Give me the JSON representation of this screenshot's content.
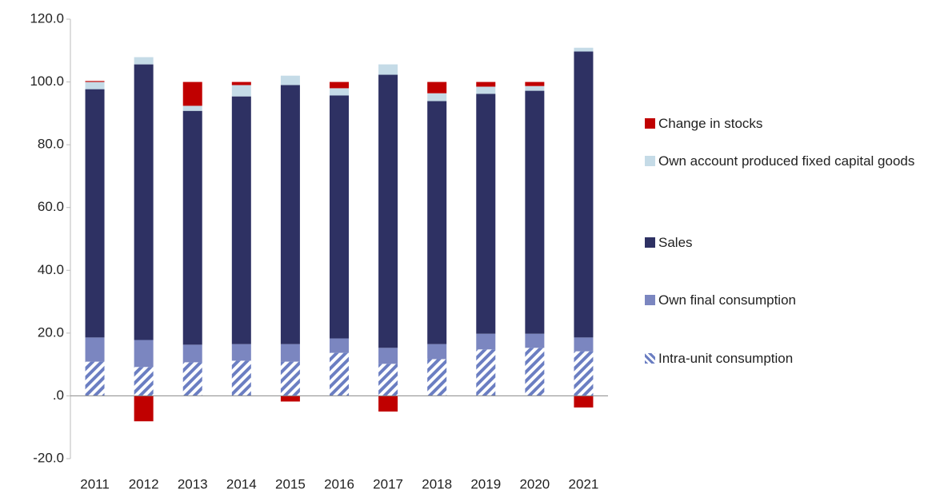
{
  "chart_data": {
    "type": "stacked_bar",
    "categories": [
      "2011",
      "2012",
      "2013",
      "2014",
      "2015",
      "2016",
      "2017",
      "2018",
      "2019",
      "2020",
      "2021"
    ],
    "series": [
      {
        "name": "Intra-unit consumption",
        "color": "#6b7ec2",
        "hatch": true,
        "values": [
          10.9,
          9.2,
          10.7,
          11.2,
          10.9,
          13.7,
          10.2,
          11.7,
          14.8,
          15.3,
          14.2
        ]
      },
      {
        "name": "Own final consumption",
        "color": "#7b86c0",
        "values": [
          7.7,
          8.6,
          5.6,
          5.3,
          5.6,
          4.6,
          5.1,
          4.8,
          5.0,
          4.5,
          4.4
        ]
      },
      {
        "name": "Sales",
        "color": "#2e3163",
        "values": [
          79.1,
          87.8,
          74.5,
          78.9,
          82.5,
          77.4,
          87.0,
          77.4,
          76.4,
          77.4,
          91.1
        ]
      },
      {
        "name": "Own account produced fixed capital goods",
        "color": "#c5dbe7",
        "values": [
          2.3,
          2.3,
          1.6,
          3.6,
          3.0,
          2.3,
          3.3,
          2.5,
          2.3,
          1.5,
          1.2
        ]
      },
      {
        "name": "Change in stocks",
        "color": "#c00000",
        "values": [
          0.3,
          -8.1,
          7.6,
          1.0,
          -1.8,
          2.0,
          -5.0,
          3.6,
          1.5,
          1.3,
          -3.7
        ]
      }
    ],
    "ylim": [
      -20,
      120
    ],
    "yticks": [
      {
        "value": -20,
        "label": "-20.0"
      },
      {
        "value": 0,
        "label": ".0"
      },
      {
        "value": 20,
        "label": "20.0"
      },
      {
        "value": 40,
        "label": "40.0"
      },
      {
        "value": 60,
        "label": "60.0"
      },
      {
        "value": 80,
        "label": "80.0"
      },
      {
        "value": 100,
        "label": "100.0"
      },
      {
        "value": 120,
        "label": "120.0"
      }
    ],
    "grid": false,
    "legend": "right"
  }
}
